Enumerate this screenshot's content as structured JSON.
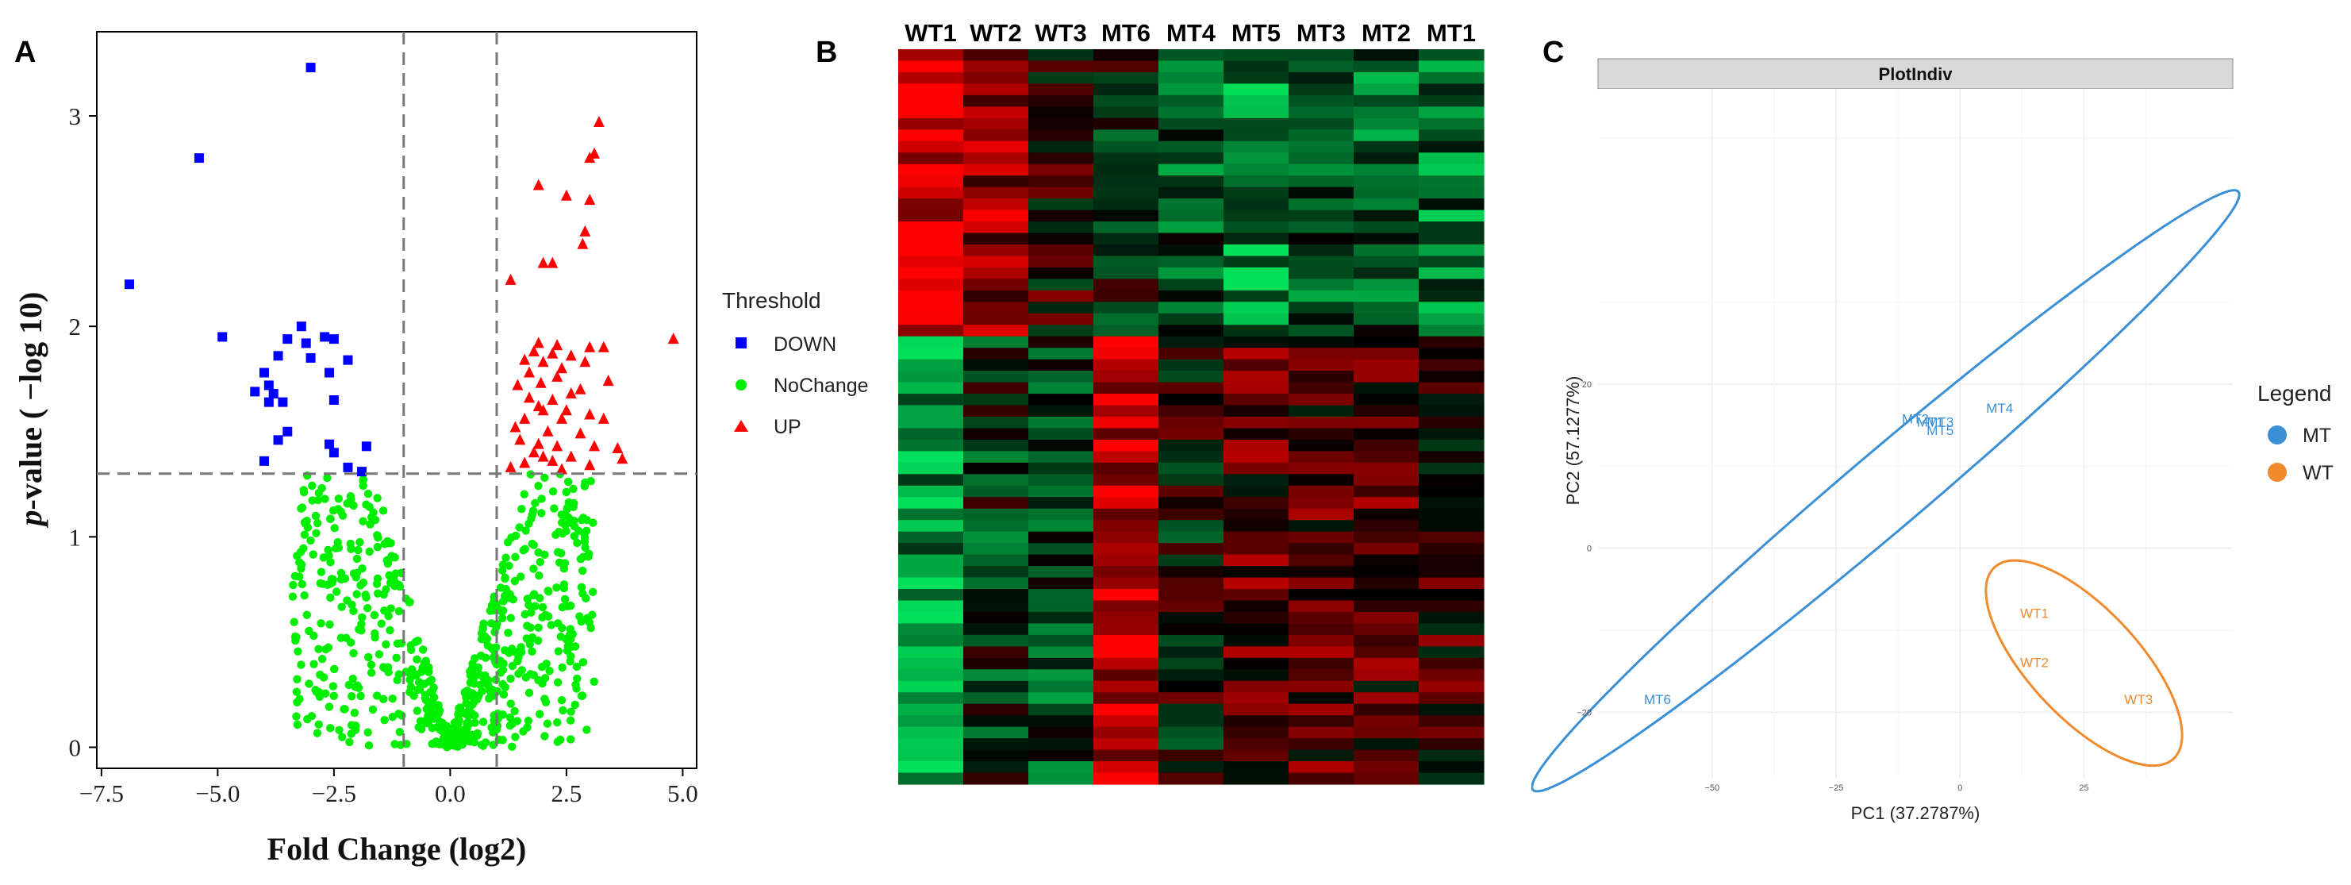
{
  "figure": {
    "panel_letters": [
      "A",
      "B",
      "C"
    ]
  },
  "chart_data": [
    {
      "type": "scatter",
      "panel": "A",
      "title": "",
      "xlabel": "Fold Change (log2)",
      "ylabel_italic": "p",
      "ylabel_rest": "-value ( −log 10)",
      "xlim": [
        -7.6,
        5.3
      ],
      "ylim": [
        -0.1,
        3.4
      ],
      "xticks": [
        -7.5,
        -5.0,
        -2.5,
        0.0,
        2.5,
        5.0
      ],
      "xtick_labels": [
        "−7.5",
        "−5.0",
        "−2.5",
        "0.0",
        "2.5",
        "5.0"
      ],
      "yticks": [
        0,
        1,
        2,
        3
      ],
      "ytick_labels": [
        "0",
        "1",
        "2",
        "3"
      ],
      "threshold_lines": {
        "x": [
          -1,
          1
        ],
        "y": 1.3
      },
      "grid": false,
      "legend": {
        "title": "Threshold",
        "position": "right",
        "items": [
          {
            "label": "DOWN",
            "color": "#0000ff",
            "shape": "square"
          },
          {
            "label": "NoChange",
            "color": "#00ee00",
            "shape": "circle"
          },
          {
            "label": "UP",
            "color": "#ff0000",
            "shape": "triangle"
          }
        ]
      },
      "series": [
        {
          "name": "DOWN",
          "color": "#0000ff",
          "points": [
            [
              -3.0,
              3.23
            ],
            [
              -5.4,
              2.8
            ],
            [
              -6.9,
              2.2
            ],
            [
              -4.9,
              1.95
            ],
            [
              -3.2,
              2.0
            ],
            [
              -2.7,
              1.95
            ],
            [
              -3.5,
              1.94
            ],
            [
              -2.5,
              1.94
            ],
            [
              -3.1,
              1.92
            ],
            [
              -3.7,
              1.86
            ],
            [
              -3.0,
              1.85
            ],
            [
              -2.2,
              1.84
            ],
            [
              -4.0,
              1.78
            ],
            [
              -2.6,
              1.78
            ],
            [
              -3.9,
              1.72
            ],
            [
              -3.8,
              1.68
            ],
            [
              -4.2,
              1.69
            ],
            [
              -3.9,
              1.64
            ],
            [
              -3.6,
              1.64
            ],
            [
              -2.5,
              1.65
            ],
            [
              -3.5,
              1.5
            ],
            [
              -3.7,
              1.46
            ],
            [
              -2.6,
              1.44
            ],
            [
              -2.5,
              1.4
            ],
            [
              -1.8,
              1.43
            ],
            [
              -4.0,
              1.36
            ],
            [
              -2.2,
              1.33
            ],
            [
              -1.9,
              1.31
            ]
          ]
        },
        {
          "name": "UP",
          "color": "#ff0000",
          "points": [
            [
              3.2,
              2.97
            ],
            [
              3.1,
              2.82
            ],
            [
              3.0,
              2.8
            ],
            [
              1.9,
              2.67
            ],
            [
              2.5,
              2.62
            ],
            [
              3.0,
              2.6
            ],
            [
              2.9,
              2.45
            ],
            [
              2.85,
              2.39
            ],
            [
              2.0,
              2.3
            ],
            [
              2.2,
              2.3
            ],
            [
              1.3,
              2.22
            ],
            [
              4.8,
              1.94
            ],
            [
              1.9,
              1.92
            ],
            [
              2.3,
              1.91
            ],
            [
              3.0,
              1.9
            ],
            [
              3.3,
              1.9
            ],
            [
              1.8,
              1.88
            ],
            [
              2.2,
              1.87
            ],
            [
              2.6,
              1.86
            ],
            [
              1.6,
              1.84
            ],
            [
              2.0,
              1.83
            ],
            [
              2.9,
              1.83
            ],
            [
              2.4,
              1.8
            ],
            [
              1.7,
              1.78
            ],
            [
              2.3,
              1.76
            ],
            [
              1.95,
              1.73
            ],
            [
              3.4,
              1.74
            ],
            [
              1.45,
              1.72
            ],
            [
              2.8,
              1.7
            ],
            [
              2.6,
              1.68
            ],
            [
              1.7,
              1.66
            ],
            [
              2.2,
              1.65
            ],
            [
              1.9,
              1.62
            ],
            [
              2.0,
              1.6
            ],
            [
              2.5,
              1.6
            ],
            [
              3.0,
              1.58
            ],
            [
              1.6,
              1.56
            ],
            [
              2.4,
              1.56
            ],
            [
              3.3,
              1.56
            ],
            [
              1.4,
              1.52
            ],
            [
              2.1,
              1.5
            ],
            [
              2.8,
              1.49
            ],
            [
              1.5,
              1.46
            ],
            [
              1.9,
              1.44
            ],
            [
              2.3,
              1.43
            ],
            [
              3.1,
              1.43
            ],
            [
              3.6,
              1.42
            ],
            [
              1.8,
              1.4
            ],
            [
              2.0,
              1.38
            ],
            [
              2.6,
              1.38
            ],
            [
              3.7,
              1.37
            ],
            [
              2.2,
              1.36
            ],
            [
              1.6,
              1.35
            ],
            [
              3.0,
              1.34
            ],
            [
              1.3,
              1.33
            ],
            [
              2.4,
              1.32
            ]
          ]
        },
        {
          "name": "NoChange",
          "color": "#00ee00",
          "count": 700,
          "x_range": [
            -3.4,
            3.1
          ],
          "y_max": 1.3
        }
      ]
    },
    {
      "type": "heatmap",
      "panel": "B",
      "columns": [
        "WT1",
        "WT2",
        "WT3",
        "MT6",
        "MT4",
        "MT5",
        "MT3",
        "MT2",
        "MT1"
      ],
      "n_rows": 64,
      "colors": {
        "low": "#00e05a",
        "mid": "#000000",
        "high": "#ff0000"
      },
      "block_means": [
        {
          "rows": [
            0,
            25
          ],
          "values": [
            0.85,
            0.6,
            0.1,
            -0.1,
            -0.4,
            -0.6,
            -0.4,
            -0.4,
            -0.5
          ]
        },
        {
          "rows": [
            25,
            64
          ],
          "values": [
            -0.65,
            -0.2,
            -0.3,
            0.8,
            0.0,
            0.3,
            0.3,
            0.25,
            0.2
          ]
        }
      ]
    },
    {
      "type": "scatter",
      "panel": "C",
      "title": "PlotIndiv",
      "xlabel": "PC1 (37.2787%)",
      "ylabel": "PC2 (57.1277%)",
      "xlim": [
        -73,
        55
      ],
      "ylim": [
        -28,
        56
      ],
      "xticks": [
        -50,
        -25,
        0,
        25
      ],
      "xtick_labels": [
        "−50",
        "−25",
        "0",
        "25"
      ],
      "yticks": [
        -20,
        0,
        20
      ],
      "ytick_labels": [
        "−20",
        "0",
        "20"
      ],
      "grid": true,
      "legend": {
        "title": "Legend",
        "position": "right",
        "items": [
          {
            "label": "MT",
            "color": "#3a8fd6"
          },
          {
            "label": "WT",
            "color": "#f08a2c"
          }
        ]
      },
      "series": [
        {
          "name": "MT",
          "color": "#3a8fd6",
          "points": [
            {
              "label": "MT4",
              "x": 8,
              "y": 16.5
            },
            {
              "label": "MT2",
              "x": -9,
              "y": 15.2
            },
            {
              "label": "MT1",
              "x": -6,
              "y": 14.8
            },
            {
              "label": "MT3",
              "x": -4,
              "y": 14.8
            },
            {
              "label": "MT5",
              "x": -4,
              "y": 13.8
            },
            {
              "label": "MT6",
              "x": -61,
              "y": -19
            }
          ],
          "ellipse": {
            "cx": -15,
            "cy": 7,
            "rx": 80,
            "ry": 5.5,
            "angle_deg": 27
          }
        },
        {
          "name": "WT",
          "color": "#f08a2c",
          "points": [
            {
              "label": "WT1",
              "x": 15,
              "y": -8.5
            },
            {
              "label": "WT2",
              "x": 15,
              "y": -14.5
            },
            {
              "label": "WT3",
              "x": 36,
              "y": -19
            }
          ],
          "ellipse": {
            "cx": 25,
            "cy": -14,
            "rx": 22,
            "ry": 8,
            "angle_deg": -28
          }
        }
      ]
    }
  ]
}
